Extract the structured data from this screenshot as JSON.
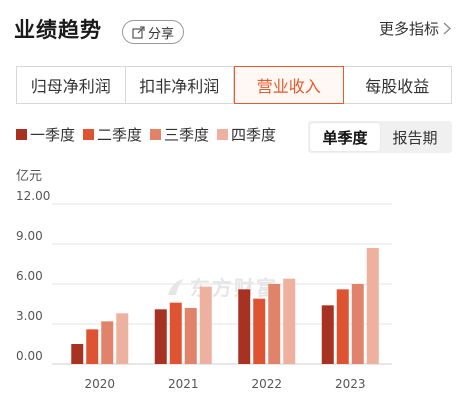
{
  "header": {
    "title": "业绩趋势",
    "share_label": "分享",
    "more_label": "更多指标"
  },
  "tabs": [
    {
      "label": "归母净利润",
      "active": false
    },
    {
      "label": "扣非净利润",
      "active": false
    },
    {
      "label": "营业收入",
      "active": true
    },
    {
      "label": "每股收益",
      "active": false
    }
  ],
  "period_toggle": {
    "single_quarter": "单季度",
    "report_period": "报告期",
    "selected": "单季度"
  },
  "watermark": "东方财富",
  "colors": {
    "accent": "#e8592b",
    "q1": "#a83222",
    "q2": "#de5433",
    "q3": "#e0836a",
    "q4": "#eeb09f"
  },
  "chart_data": {
    "type": "bar",
    "unit_label": "亿元",
    "categories": [
      "2020",
      "2021",
      "2022",
      "2023"
    ],
    "series": [
      {
        "name": "一季度",
        "values": [
          1.5,
          4.1,
          5.6,
          4.4
        ]
      },
      {
        "name": "二季度",
        "values": [
          2.6,
          4.6,
          4.9,
          5.6
        ]
      },
      {
        "name": "三季度",
        "values": [
          3.2,
          4.2,
          6.0,
          6.0
        ]
      },
      {
        "name": "四季度",
        "values": [
          3.8,
          5.8,
          6.4,
          8.7
        ]
      }
    ],
    "y_ticks": [
      "0.00",
      "3.00",
      "6.00",
      "9.00",
      "12.00"
    ],
    "ylim": [
      0,
      12
    ],
    "grid": true,
    "legend_position": "top-left"
  }
}
